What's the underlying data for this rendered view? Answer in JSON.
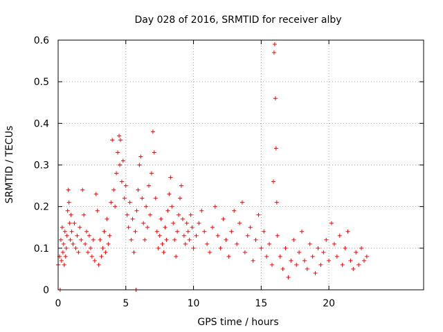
{
  "chart_data": {
    "type": "scatter",
    "title": "Day 028 of 2016, SRMTID for receiver alby",
    "xlabel": "GPS time / hours",
    "ylabel": "SRMTID / TECUs",
    "xlim": [
      0,
      27
    ],
    "ylim": [
      0,
      0.6
    ],
    "grid": true,
    "marker": "+",
    "series_color": "#ff0000",
    "x_ticks": [
      {
        "value": 0,
        "label": "0"
      },
      {
        "value": 5,
        "label": "5"
      },
      {
        "value": 10,
        "label": "10"
      },
      {
        "value": 15,
        "label": "15"
      },
      {
        "value": 20,
        "label": "20"
      }
    ],
    "y_ticks": [
      {
        "value": 0,
        "label": "0"
      },
      {
        "value": 0.1,
        "label": "0.1"
      },
      {
        "value": 0.2,
        "label": "0.2"
      },
      {
        "value": 0.3,
        "label": "0.3"
      },
      {
        "value": 0.4,
        "label": "0.4"
      },
      {
        "value": 0.5,
        "label": "0.5"
      },
      {
        "value": 0.6,
        "label": "0.6"
      }
    ],
    "series": [
      {
        "name": "SRMTID",
        "points": [
          [
            0.0,
            0.06
          ],
          [
            0.1,
            0.08
          ],
          [
            0.15,
            0.0
          ],
          [
            0.2,
            0.12
          ],
          [
            0.25,
            0.07
          ],
          [
            0.3,
            0.15
          ],
          [
            0.35,
            0.09
          ],
          [
            0.4,
            0.11
          ],
          [
            0.45,
            0.06
          ],
          [
            0.5,
            0.14
          ],
          [
            0.55,
            0.08
          ],
          [
            0.6,
            0.1
          ],
          [
            0.65,
            0.13
          ],
          [
            0.7,
            0.19
          ],
          [
            0.75,
            0.24
          ],
          [
            0.8,
            0.21
          ],
          [
            0.85,
            0.16
          ],
          [
            0.9,
            0.12
          ],
          [
            0.95,
            0.18
          ],
          [
            1.0,
            0.14
          ],
          [
            1.1,
            0.11
          ],
          [
            1.2,
            0.16
          ],
          [
            1.3,
            0.1
          ],
          [
            1.4,
            0.13
          ],
          [
            1.5,
            0.09
          ],
          [
            1.6,
            0.15
          ],
          [
            1.7,
            0.12
          ],
          [
            1.8,
            0.24
          ],
          [
            1.9,
            0.18
          ],
          [
            2.0,
            0.11
          ],
          [
            2.1,
            0.14
          ],
          [
            2.2,
            0.09
          ],
          [
            2.3,
            0.13
          ],
          [
            2.4,
            0.1
          ],
          [
            2.5,
            0.08
          ],
          [
            2.6,
            0.12
          ],
          [
            2.7,
            0.07
          ],
          [
            2.8,
            0.23
          ],
          [
            2.9,
            0.19
          ],
          [
            3.0,
            0.06
          ],
          [
            3.1,
            0.12
          ],
          [
            3.2,
            0.08
          ],
          [
            3.3,
            0.1
          ],
          [
            3.4,
            0.14
          ],
          [
            3.5,
            0.09
          ],
          [
            3.6,
            0.17
          ],
          [
            3.7,
            0.11
          ],
          [
            3.8,
            0.13
          ],
          [
            3.9,
            0.21
          ],
          [
            4.0,
            0.36
          ],
          [
            4.1,
            0.24
          ],
          [
            4.2,
            0.2
          ],
          [
            4.3,
            0.28
          ],
          [
            4.4,
            0.33
          ],
          [
            4.5,
            0.37
          ],
          [
            4.55,
            0.3
          ],
          [
            4.6,
            0.36
          ],
          [
            4.7,
            0.26
          ],
          [
            4.8,
            0.31
          ],
          [
            4.9,
            0.22
          ],
          [
            5.0,
            0.25
          ],
          [
            5.1,
            0.18
          ],
          [
            5.2,
            0.15
          ],
          [
            5.3,
            0.21
          ],
          [
            5.4,
            0.12
          ],
          [
            5.5,
            0.17
          ],
          [
            5.6,
            0.09
          ],
          [
            5.7,
            0.14
          ],
          [
            5.75,
            0.0
          ],
          [
            5.8,
            0.19
          ],
          [
            5.9,
            0.24
          ],
          [
            6.0,
            0.3
          ],
          [
            6.1,
            0.32
          ],
          [
            6.2,
            0.22
          ],
          [
            6.3,
            0.16
          ],
          [
            6.4,
            0.12
          ],
          [
            6.5,
            0.2
          ],
          [
            6.6,
            0.15
          ],
          [
            6.7,
            0.25
          ],
          [
            6.8,
            0.18
          ],
          [
            6.9,
            0.28
          ],
          [
            7.0,
            0.38
          ],
          [
            7.1,
            0.33
          ],
          [
            7.2,
            0.22
          ],
          [
            7.3,
            0.14
          ],
          [
            7.4,
            0.1
          ],
          [
            7.5,
            0.13
          ],
          [
            7.6,
            0.17
          ],
          [
            7.7,
            0.11
          ],
          [
            7.8,
            0.09
          ],
          [
            7.9,
            0.15
          ],
          [
            8.0,
            0.12
          ],
          [
            8.1,
            0.19
          ],
          [
            8.2,
            0.23
          ],
          [
            8.3,
            0.27
          ],
          [
            8.4,
            0.2
          ],
          [
            8.5,
            0.16
          ],
          [
            8.6,
            0.12
          ],
          [
            8.7,
            0.08
          ],
          [
            8.8,
            0.14
          ],
          [
            8.9,
            0.18
          ],
          [
            9.0,
            0.22
          ],
          [
            9.1,
            0.25
          ],
          [
            9.2,
            0.17
          ],
          [
            9.3,
            0.13
          ],
          [
            9.4,
            0.11
          ],
          [
            9.5,
            0.16
          ],
          [
            9.6,
            0.14
          ],
          [
            9.7,
            0.12
          ],
          [
            9.8,
            0.18
          ],
          [
            9.9,
            0.15
          ],
          [
            10.0,
            0.1
          ],
          [
            10.2,
            0.13
          ],
          [
            10.4,
            0.16
          ],
          [
            10.6,
            0.19
          ],
          [
            10.8,
            0.14
          ],
          [
            11.0,
            0.11
          ],
          [
            11.2,
            0.09
          ],
          [
            11.4,
            0.15
          ],
          [
            11.6,
            0.2
          ],
          [
            11.8,
            0.13
          ],
          [
            12.0,
            0.1
          ],
          [
            12.2,
            0.17
          ],
          [
            12.4,
            0.12
          ],
          [
            12.6,
            0.08
          ],
          [
            12.8,
            0.14
          ],
          [
            13.0,
            0.19
          ],
          [
            13.2,
            0.11
          ],
          [
            13.4,
            0.16
          ],
          [
            13.6,
            0.21
          ],
          [
            13.8,
            0.09
          ],
          [
            14.0,
            0.13
          ],
          [
            14.2,
            0.15
          ],
          [
            14.4,
            0.07
          ],
          [
            14.6,
            0.12
          ],
          [
            14.8,
            0.18
          ],
          [
            15.0,
            0.1
          ],
          [
            15.2,
            0.14
          ],
          [
            15.4,
            0.08
          ],
          [
            15.6,
            0.11
          ],
          [
            15.8,
            0.06
          ],
          [
            15.9,
            0.26
          ],
          [
            15.95,
            0.57
          ],
          [
            16.0,
            0.59
          ],
          [
            16.05,
            0.46
          ],
          [
            16.1,
            0.34
          ],
          [
            16.15,
            0.21
          ],
          [
            16.2,
            0.13
          ],
          [
            16.4,
            0.08
          ],
          [
            16.6,
            0.05
          ],
          [
            16.8,
            0.1
          ],
          [
            17.0,
            0.03
          ],
          [
            17.2,
            0.07
          ],
          [
            17.4,
            0.12
          ],
          [
            17.6,
            0.06
          ],
          [
            17.8,
            0.09
          ],
          [
            18.0,
            0.14
          ],
          [
            18.2,
            0.07
          ],
          [
            18.4,
            0.05
          ],
          [
            18.6,
            0.11
          ],
          [
            18.8,
            0.08
          ],
          [
            19.0,
            0.04
          ],
          [
            19.2,
            0.1
          ],
          [
            19.4,
            0.06
          ],
          [
            19.6,
            0.09
          ],
          [
            19.8,
            0.12
          ],
          [
            20.0,
            0.07
          ],
          [
            20.2,
            0.16
          ],
          [
            20.4,
            0.11
          ],
          [
            20.6,
            0.08
          ],
          [
            20.8,
            0.13
          ],
          [
            21.0,
            0.06
          ],
          [
            21.2,
            0.1
          ],
          [
            21.4,
            0.14
          ],
          [
            21.6,
            0.07
          ],
          [
            21.8,
            0.05
          ],
          [
            22.0,
            0.09
          ],
          [
            22.2,
            0.06
          ],
          [
            22.4,
            0.1
          ],
          [
            22.6,
            0.07
          ],
          [
            22.8,
            0.08
          ]
        ]
      }
    ]
  }
}
